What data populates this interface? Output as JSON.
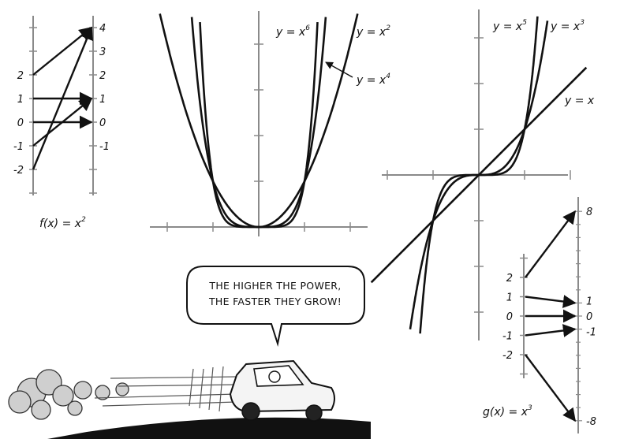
{
  "colors": {
    "ink": "#111111",
    "axis": "#8a8a8a",
    "background": "#ffffff"
  },
  "mapping_f": {
    "label": "f(x) = x",
    "label_exp": "2",
    "inputs": [
      "2",
      "1",
      "0",
      "-1",
      "-2"
    ],
    "outputs": [
      "4",
      "3",
      "2",
      "1",
      "0",
      "-1"
    ],
    "arrows": [
      {
        "from": 2,
        "to": 4
      },
      {
        "from": 1,
        "to": 1
      },
      {
        "from": 0,
        "to": 0
      },
      {
        "from": -1,
        "to": 1
      },
      {
        "from": -2,
        "to": 4
      }
    ]
  },
  "even_powers": {
    "labels": [
      {
        "base": "y = x",
        "exp": "6"
      },
      {
        "base": "y = x",
        "exp": "2"
      },
      {
        "base": "y = x",
        "exp": "4"
      }
    ],
    "curves": [
      2,
      4,
      6
    ]
  },
  "odd_powers": {
    "labels": [
      {
        "base": "y = x",
        "exp": "5"
      },
      {
        "base": "y = x",
        "exp": "3"
      },
      {
        "base": "y = x",
        "exp": ""
      }
    ],
    "curves": [
      1,
      3,
      5
    ]
  },
  "mapping_g": {
    "label": "g(x) = x",
    "label_exp": "3",
    "inputs": [
      "2",
      "1",
      "0",
      "-1",
      "-2"
    ],
    "outputs": [
      "8",
      "1",
      "0",
      "-1",
      "-8"
    ],
    "arrows": [
      {
        "from": 2,
        "to": 8
      },
      {
        "from": 1,
        "to": 1
      },
      {
        "from": 0,
        "to": 0
      },
      {
        "from": -1,
        "to": -1
      },
      {
        "from": -2,
        "to": -8
      }
    ]
  },
  "speech_bubble": {
    "line1": "THE HIGHER THE POWER,",
    "line2": "THE FASTER THEY GROW!"
  }
}
